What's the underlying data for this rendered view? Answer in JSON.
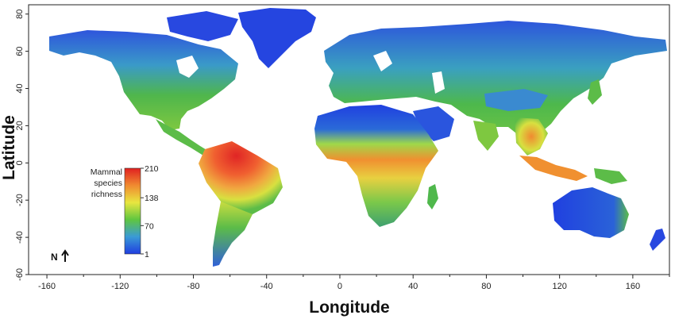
{
  "map": {
    "xlabel": "Longitude",
    "ylabel": "Latitude",
    "x_ticks": [
      -160,
      -120,
      -80,
      -40,
      0,
      40,
      80,
      120,
      160
    ],
    "y_ticks": [
      80,
      60,
      40,
      20,
      0,
      -20,
      -40,
      -60
    ],
    "xlim": [
      -170,
      180
    ],
    "ylim": [
      -60,
      85
    ],
    "legend": {
      "title_lines": [
        "Mammal",
        "species",
        "richness"
      ],
      "ticks": [
        210,
        138,
        70,
        1
      ],
      "colors": [
        "#1f3ee0",
        "#3a9ad6",
        "#5fc640",
        "#e8e640",
        "#f08a30",
        "#e02020"
      ]
    },
    "north_label": "N",
    "colors": {
      "low": "#1f3ee0",
      "low_mid": "#3aa0c8",
      "mid": "#4fb84a",
      "mid_high": "#d8e040",
      "high": "#f0802a",
      "max": "#e02525",
      "ocean": "#ffffff"
    }
  }
}
